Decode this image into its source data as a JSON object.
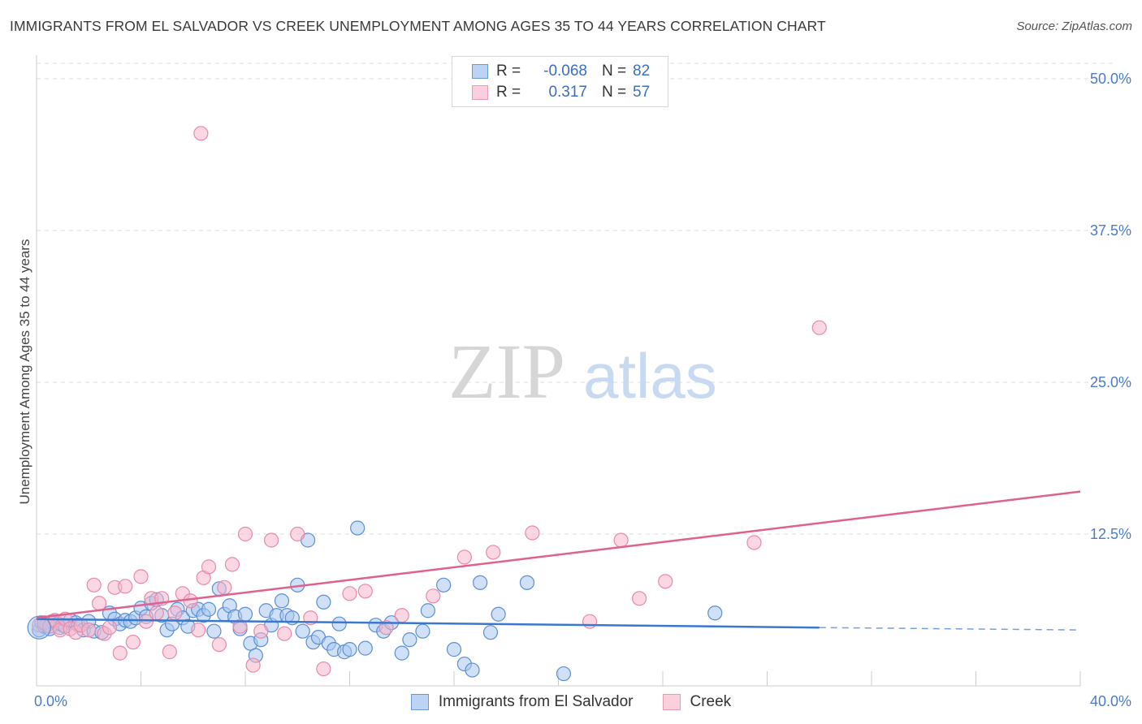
{
  "title": "IMMIGRANTS FROM EL SALVADOR VS CREEK UNEMPLOYMENT AMONG AGES 35 TO 44 YEARS CORRELATION CHART",
  "source": "Source: ZipAtlas.com",
  "watermark": {
    "zip": "ZIP",
    "atlas": "atlas"
  },
  "colors": {
    "blue_fill": "#a9c6f0",
    "blue_stroke": "#5b8fd6",
    "blue_line": "#3a78d0",
    "pink_fill": "#f6b7ca",
    "pink_stroke": "#e88aa8",
    "pink_line": "#e0608e",
    "grid": "#dddddd",
    "axis_text": "#4a7cc9"
  },
  "legend": {
    "rows": [
      {
        "r_label": "R =",
        "r_value": "-0.068",
        "n_label": "N =",
        "n_value": "82"
      },
      {
        "r_label": "R =",
        "r_value": "0.317",
        "n_label": "N =",
        "n_value": "57"
      }
    ]
  },
  "chart_data": {
    "type": "scatter",
    "title": "IMMIGRANTS FROM EL SALVADOR VS CREEK UNEMPLOYMENT AMONG AGES 35 TO 44 YEARS CORRELATION CHART",
    "xlabel": "",
    "ylabel": "Unemployment Among Ages 35 to 44 years",
    "xlim": [
      0,
      40
    ],
    "ylim": [
      0,
      50
    ],
    "x_tick_labels": [
      "0.0%",
      "40.0%"
    ],
    "y_ticks": [
      12.5,
      25.0,
      37.5,
      50.0
    ],
    "y_tick_labels": [
      "12.5%",
      "25.0%",
      "37.5%",
      "50.0%"
    ],
    "grid": true,
    "series": [
      {
        "name": "Immigrants from El Salvador",
        "R": -0.068,
        "N": 82,
        "trend": {
          "x0": 0,
          "y0": 5.5,
          "x1": 30,
          "y1": 4.8,
          "dashed_to_x": 40,
          "dashed_to_y": 4.6
        },
        "points": [
          [
            0.1,
            4.6
          ],
          [
            0.2,
            5.2
          ],
          [
            0.3,
            4.9
          ],
          [
            0.4,
            5.0
          ],
          [
            0.5,
            4.7
          ],
          [
            0.6,
            5.3
          ],
          [
            0.8,
            5.1
          ],
          [
            0.9,
            4.8
          ],
          [
            1.0,
            5.0
          ],
          [
            1.1,
            4.9
          ],
          [
            1.3,
            5.4
          ],
          [
            1.5,
            5.2
          ],
          [
            1.6,
            5.0
          ],
          [
            1.8,
            4.6
          ],
          [
            2.0,
            5.3
          ],
          [
            2.2,
            4.5
          ],
          [
            2.5,
            4.4
          ],
          [
            2.8,
            6.0
          ],
          [
            3.0,
            5.5
          ],
          [
            3.2,
            5.1
          ],
          [
            3.4,
            5.4
          ],
          [
            3.6,
            5.3
          ],
          [
            3.8,
            5.6
          ],
          [
            4.0,
            6.4
          ],
          [
            4.2,
            5.7
          ],
          [
            4.4,
            6.8
          ],
          [
            4.6,
            7.1
          ],
          [
            4.8,
            5.8
          ],
          [
            5.0,
            4.6
          ],
          [
            5.2,
            5.1
          ],
          [
            5.4,
            6.3
          ],
          [
            5.6,
            5.6
          ],
          [
            5.8,
            4.9
          ],
          [
            6.0,
            6.2
          ],
          [
            6.2,
            6.3
          ],
          [
            6.4,
            5.8
          ],
          [
            6.6,
            6.3
          ],
          [
            6.8,
            4.5
          ],
          [
            7.0,
            8.0
          ],
          [
            7.2,
            5.9
          ],
          [
            7.4,
            6.6
          ],
          [
            7.6,
            5.7
          ],
          [
            7.8,
            4.7
          ],
          [
            8.0,
            5.9
          ],
          [
            8.2,
            3.5
          ],
          [
            8.4,
            2.5
          ],
          [
            8.6,
            3.8
          ],
          [
            8.8,
            6.2
          ],
          [
            9.0,
            5.0
          ],
          [
            9.2,
            5.8
          ],
          [
            9.4,
            7.0
          ],
          [
            9.6,
            5.8
          ],
          [
            9.8,
            5.6
          ],
          [
            10.0,
            8.3
          ],
          [
            10.2,
            4.5
          ],
          [
            10.4,
            12.0
          ],
          [
            10.6,
            3.6
          ],
          [
            10.8,
            4.0
          ],
          [
            11.0,
            6.9
          ],
          [
            11.2,
            3.5
          ],
          [
            11.4,
            3.0
          ],
          [
            11.6,
            5.1
          ],
          [
            11.8,
            2.8
          ],
          [
            12.0,
            3.0
          ],
          [
            12.3,
            13.0
          ],
          [
            12.6,
            3.1
          ],
          [
            13.0,
            5.0
          ],
          [
            13.3,
            4.5
          ],
          [
            13.6,
            5.2
          ],
          [
            14.0,
            2.7
          ],
          [
            14.3,
            3.8
          ],
          [
            14.8,
            4.5
          ],
          [
            15.0,
            6.2
          ],
          [
            15.6,
            8.3
          ],
          [
            16.0,
            3.0
          ],
          [
            16.4,
            1.8
          ],
          [
            16.7,
            1.3
          ],
          [
            17.0,
            8.5
          ],
          [
            17.4,
            4.4
          ],
          [
            17.7,
            5.9
          ],
          [
            18.8,
            8.5
          ],
          [
            20.2,
            1.0
          ],
          [
            26.0,
            6.0
          ]
        ]
      },
      {
        "name": "Creek",
        "R": 0.317,
        "N": 57,
        "trend": {
          "x0": 0,
          "y0": 5.6,
          "x1": 40,
          "y1": 16.0
        },
        "points": [
          [
            0.1,
            5.0
          ],
          [
            0.3,
            5.2
          ],
          [
            0.5,
            4.9
          ],
          [
            0.7,
            5.4
          ],
          [
            0.9,
            4.6
          ],
          [
            1.1,
            5.5
          ],
          [
            1.3,
            4.7
          ],
          [
            1.5,
            4.4
          ],
          [
            1.7,
            5.0
          ],
          [
            2.0,
            4.6
          ],
          [
            2.2,
            8.3
          ],
          [
            2.4,
            6.8
          ],
          [
            2.6,
            4.3
          ],
          [
            2.8,
            4.8
          ],
          [
            3.0,
            8.1
          ],
          [
            3.2,
            2.7
          ],
          [
            3.4,
            8.2
          ],
          [
            3.7,
            3.6
          ],
          [
            4.0,
            9.0
          ],
          [
            4.2,
            5.3
          ],
          [
            4.4,
            7.2
          ],
          [
            4.6,
            6.0
          ],
          [
            4.8,
            7.2
          ],
          [
            5.1,
            2.8
          ],
          [
            5.3,
            6.0
          ],
          [
            5.6,
            7.6
          ],
          [
            5.9,
            7.0
          ],
          [
            6.2,
            4.6
          ],
          [
            6.4,
            8.9
          ],
          [
            6.6,
            9.8
          ],
          [
            7.0,
            3.4
          ],
          [
            7.2,
            8.1
          ],
          [
            7.5,
            10.0
          ],
          [
            7.8,
            4.9
          ],
          [
            8.0,
            12.5
          ],
          [
            8.3,
            1.7
          ],
          [
            8.6,
            4.5
          ],
          [
            9.0,
            12.0
          ],
          [
            9.5,
            4.3
          ],
          [
            10.0,
            12.5
          ],
          [
            10.5,
            5.6
          ],
          [
            11.0,
            1.4
          ],
          [
            12.0,
            7.6
          ],
          [
            12.6,
            7.8
          ],
          [
            13.4,
            4.8
          ],
          [
            14.0,
            5.8
          ],
          [
            15.2,
            7.4
          ],
          [
            16.4,
            10.6
          ],
          [
            17.5,
            11.0
          ],
          [
            19.0,
            12.6
          ],
          [
            21.2,
            5.3
          ],
          [
            22.4,
            12.0
          ],
          [
            23.1,
            7.2
          ],
          [
            24.1,
            8.6
          ],
          [
            27.5,
            11.8
          ],
          [
            30.0,
            29.5
          ],
          [
            6.3,
            45.5
          ]
        ]
      }
    ]
  }
}
